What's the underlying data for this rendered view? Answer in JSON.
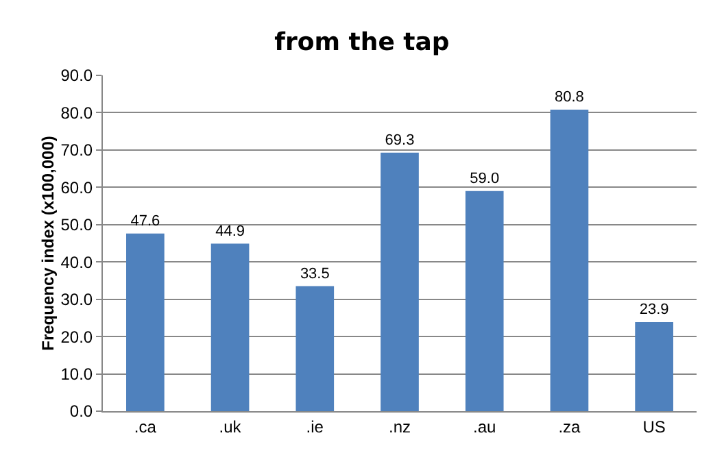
{
  "chart_data": {
    "type": "bar",
    "title": "from the tap",
    "ylabel": "Frequency index (x100,000)",
    "categories": [
      ".ca",
      ".uk",
      ".ie",
      ".nz",
      ".au",
      ".za",
      "US"
    ],
    "values": [
      47.6,
      44.9,
      33.5,
      69.3,
      59.0,
      80.8,
      23.9
    ],
    "value_labels": [
      "47.6",
      "44.9",
      "33.5",
      "69.3",
      "59.0",
      "80.8",
      "23.9"
    ],
    "color": "#4f81bd",
    "ylim": [
      0,
      90
    ],
    "yticks": [
      {
        "value": 0,
        "label": "0.0"
      },
      {
        "value": 10,
        "label": "10.0"
      },
      {
        "value": 20,
        "label": "20.0"
      },
      {
        "value": 30,
        "label": "30.0"
      },
      {
        "value": 40,
        "label": "40.0"
      },
      {
        "value": 50,
        "label": "50.0"
      },
      {
        "value": 60,
        "label": "60.0"
      },
      {
        "value": 70,
        "label": "70.0"
      },
      {
        "value": 80,
        "label": "80.0"
      },
      {
        "value": 90,
        "label": "90.0"
      }
    ],
    "grid": "y"
  }
}
